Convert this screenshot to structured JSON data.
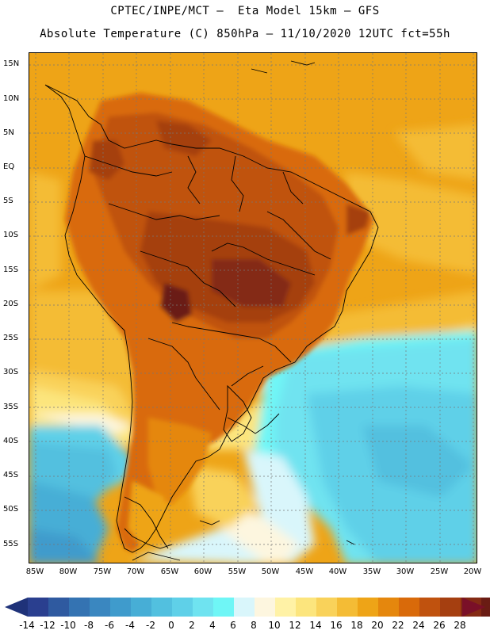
{
  "header": {
    "title_line1": "CPTEC/INPE/MCT –  Eta Model 15km – GFS",
    "title_line2": "Absolute Temperature (C) 850hPa – 11/10/2020 12UTC fct=55h"
  },
  "map": {
    "lat_labels": [
      "15N",
      "10N",
      "5N",
      "EQ",
      "5S",
      "10S",
      "15S",
      "20S",
      "25S",
      "30S",
      "35S",
      "40S",
      "45S",
      "50S",
      "55S"
    ],
    "lon_labels": [
      "85W",
      "80W",
      "75W",
      "70W",
      "65W",
      "60W",
      "55W",
      "50W",
      "45W",
      "40W",
      "35W",
      "30W",
      "25W",
      "20W"
    ]
  },
  "colorbar": {
    "ticks": [
      "-14",
      "-12",
      "-10",
      "-8",
      "-6",
      "-4",
      "-2",
      "0",
      "2",
      "4",
      "6",
      "8",
      "10",
      "12",
      "14",
      "16",
      "18",
      "20",
      "22",
      "24",
      "26",
      "28"
    ],
    "colors": [
      "#2a3f8f",
      "#2f5aa0",
      "#3473b2",
      "#3a87c0",
      "#3f9bcc",
      "#47aed6",
      "#52c0df",
      "#5fd0e8",
      "#6fe3f0",
      "#6ff6f6",
      "#d9f6fb",
      "#fdf6df",
      "#fff2a6",
      "#fce57d",
      "#f9d25a",
      "#f4bc35",
      "#eea417",
      "#e5870d",
      "#d96a0a",
      "#c0520e",
      "#a53f10",
      "#842a14",
      "#6a1c14"
    ],
    "under_color": "#1f3279",
    "over_color": "#7a1028"
  }
}
